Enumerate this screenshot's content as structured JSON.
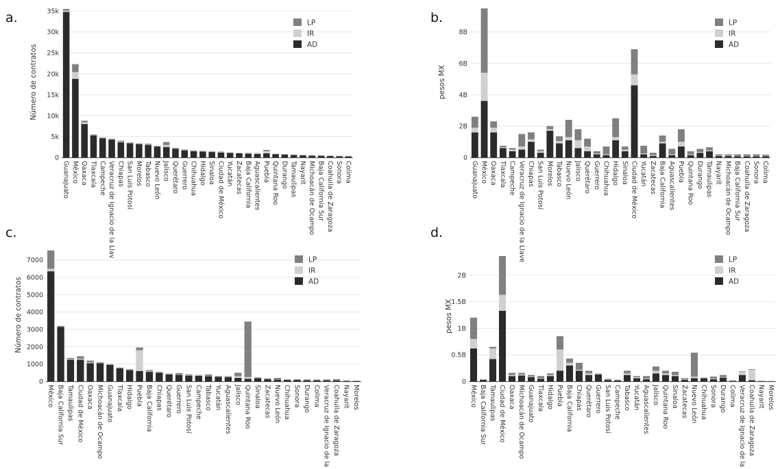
{
  "legend_labels": [
    "LP",
    "IR",
    "AD"
  ],
  "colors": {
    "AD": "#2b2b2b",
    "IR": "#d0d0d0",
    "LP": "#808080",
    "grid": "#e6e6e6",
    "axis": "#555555"
  },
  "chart_data": [
    {
      "type": "bar",
      "stacked": true,
      "panel_label": "a.",
      "ylabel": "Número de contratos",
      "ylim": [
        0,
        36000
      ],
      "yticks": [
        0,
        5000,
        10000,
        15000,
        20000,
        25000,
        30000,
        35000
      ],
      "ytick_labels": [
        "0",
        "5k",
        "10k",
        "15k",
        "20k",
        "25k",
        "30k",
        "35k"
      ],
      "legend_position": "top-right",
      "categories": [
        "Guanajuato",
        "México",
        "Oaxaca",
        "Tlaxcala",
        "Campeche",
        "Veracruz de Ignacio de la Llav",
        "Chiapas",
        "San Luis Potosí",
        "Morelos",
        "Tabasco",
        "Nuevo León",
        "Jalisco",
        "Querétaro",
        "Guerrero",
        "Chihuahua",
        "Hidalgo",
        "Sinaloa",
        "Ciudad de México",
        "Yucatán",
        "Zacatecas",
        "Baja California",
        "Aguascalientes",
        "Puebla",
        "Quintana Roo",
        "Durango",
        "Tamaulipas",
        "Nayarit",
        "Michoacán de Ocampo",
        "Baja California Sur",
        "Coahuila de Zaragoza",
        "Sonora",
        "Colima"
      ],
      "series": [
        {
          "name": "AD",
          "values": [
            34800,
            18800,
            8000,
            5300,
            4600,
            4300,
            3600,
            3400,
            3200,
            3000,
            2600,
            2500,
            2100,
            1700,
            1500,
            1400,
            1300,
            1200,
            1100,
            1000,
            900,
            850,
            1000,
            800,
            700,
            600,
            500,
            450,
            400,
            350,
            300,
            250
          ]
        },
        {
          "name": "IR",
          "values": [
            300,
            1600,
            400,
            100,
            100,
            100,
            150,
            100,
            50,
            100,
            100,
            500,
            100,
            100,
            100,
            100,
            100,
            100,
            50,
            50,
            100,
            100,
            500,
            50,
            50,
            50,
            50,
            50,
            50,
            50,
            50,
            50
          ]
        },
        {
          "name": "LP",
          "values": [
            400,
            1900,
            400,
            100,
            100,
            100,
            250,
            100,
            100,
            200,
            100,
            700,
            100,
            100,
            100,
            100,
            100,
            100,
            50,
            50,
            100,
            100,
            300,
            50,
            50,
            50,
            50,
            50,
            50,
            50,
            50,
            50
          ]
        }
      ]
    },
    {
      "type": "bar",
      "stacked": true,
      "panel_label": "b.",
      "ylabel": "pesos MX",
      "ylim": [
        0,
        9600000000
      ],
      "yticks": [
        0,
        2000000000,
        4000000000,
        6000000000,
        8000000000
      ],
      "ytick_labels": [
        "0",
        "2B",
        "4B",
        "6B",
        "8B"
      ],
      "legend_position": "top-right",
      "categories": [
        "Guanajuato",
        "México",
        "Oaxaca",
        "Tlaxcala",
        "Campeche",
        "Veracruz de Ignacio de la Llave",
        "Chiapas",
        "San Luis Potosí",
        "Morelos",
        "Tabasco",
        "Nuevo León",
        "Jalisco",
        "Querétaro",
        "Guerrero",
        "Chihuahua",
        "Hidalgo",
        "Sinaloa",
        "Ciudad de México",
        "Yucatán",
        "Zacatecas",
        "Baja California",
        "Aguascalientes",
        "Puebla",
        "Quintana Roo",
        "Durango",
        "Tamaulipas",
        "Nayarit",
        "Michoacán de Ocampo",
        "Baja California Sur",
        "Coahuila de Zaragoza",
        "Sonora",
        "Colima"
      ],
      "series": [
        {
          "name": "AD",
          "values": [
            1600000000,
            3600000000,
            1600000000,
            600000000,
            400000000,
            500000000,
            1000000000,
            300000000,
            1700000000,
            900000000,
            1100000000,
            600000000,
            400000000,
            200000000,
            150000000,
            1100000000,
            400000000,
            4600000000,
            200000000,
            100000000,
            900000000,
            150000000,
            700000000,
            150000000,
            300000000,
            400000000,
            100000000,
            100000000,
            80000000,
            80000000,
            80000000,
            80000000
          ]
        },
        {
          "name": "IR",
          "values": [
            300000000,
            1800000000,
            300000000,
            50000000,
            100000000,
            200000000,
            150000000,
            100000000,
            100000000,
            150000000,
            200000000,
            500000000,
            300000000,
            50000000,
            50000000,
            200000000,
            100000000,
            700000000,
            50000000,
            50000000,
            100000000,
            50000000,
            300000000,
            50000000,
            50000000,
            50000000,
            20000000,
            20000000,
            20000000,
            20000000,
            20000000,
            20000000
          ]
        },
        {
          "name": "LP",
          "values": [
            700000000,
            4100000000,
            400000000,
            100000000,
            100000000,
            800000000,
            450000000,
            100000000,
            200000000,
            300000000,
            1100000000,
            700000000,
            500000000,
            150000000,
            500000000,
            1200000000,
            200000000,
            1600000000,
            500000000,
            150000000,
            400000000,
            350000000,
            800000000,
            200000000,
            200000000,
            200000000,
            80000000,
            80000000,
            100000000,
            100000000,
            100000000,
            80000000
          ]
        }
      ]
    },
    {
      "type": "bar",
      "stacked": true,
      "panel_label": "c.",
      "ylabel": "Número de contratos",
      "ylim": [
        0,
        7700
      ],
      "yticks": [
        0,
        1000,
        2000,
        3000,
        4000,
        5000,
        6000,
        7000
      ],
      "ytick_labels": [
        "0",
        "1000",
        "2000",
        "3000",
        "4000",
        "5000",
        "6000",
        "7000"
      ],
      "legend_position": "top-right",
      "categories": [
        "México",
        "Baja California Sur",
        "Tamaulipas",
        "Ciudad de México",
        "Oaxaca",
        "Michoacán de Ocampo",
        "Guanajuato",
        "Tlaxcala",
        "Hidalgo",
        "Puebla",
        "Baja California",
        "Chiapas",
        "Querétaro",
        "Guerrero",
        "San Luis Potosí",
        "Campeche",
        "Tabasco",
        "Yucatán",
        "Aguascalientes",
        "Jalisco",
        "Quintana Roo",
        "Sinaloa",
        "Zacatecas",
        "Nuevo León",
        "Chihuahua",
        "Sonora",
        "Durango",
        "Colima",
        "Veracruz de Ignacio de la Llave",
        "Coahuila de Zaragoza",
        "Nayarit",
        "Morelos"
      ],
      "series": [
        {
          "name": "AD",
          "values": [
            6350,
            3150,
            1250,
            1250,
            1050,
            1050,
            950,
            750,
            650,
            600,
            550,
            500,
            400,
            380,
            330,
            320,
            300,
            260,
            250,
            200,
            150,
            180,
            120,
            100,
            80,
            80,
            70,
            70,
            70,
            60,
            30,
            20
          ]
        },
        {
          "name": "IR",
          "values": [
            150,
            20,
            40,
            50,
            50,
            20,
            20,
            20,
            20,
            1200,
            40,
            20,
            20,
            20,
            20,
            20,
            20,
            20,
            20,
            100,
            100,
            20,
            20,
            20,
            20,
            20,
            20,
            20,
            20,
            20,
            10,
            10
          ]
        },
        {
          "name": "LP",
          "values": [
            1050,
            30,
            60,
            150,
            100,
            30,
            30,
            30,
            30,
            150,
            60,
            30,
            30,
            80,
            50,
            30,
            80,
            30,
            30,
            200,
            3200,
            30,
            40,
            80,
            20,
            30,
            30,
            20,
            30,
            50,
            10,
            10
          ]
        }
      ]
    },
    {
      "type": "bar",
      "stacked": true,
      "panel_label": "d.",
      "ylabel": "pesos MX",
      "ylim": [
        0,
        2450000000
      ],
      "yticks": [
        0,
        500000000,
        1000000000,
        1500000000,
        2000000000
      ],
      "ytick_labels": [
        "0",
        "0.5B",
        "1B",
        "1.5B",
        "2B"
      ],
      "legend_position": "top-right",
      "categories": [
        "México",
        "Baja California Sur",
        "Tamaulipas",
        "Ciudad de México",
        "Oaxaca",
        "Michoacán de Ocampo",
        "Guanajuato",
        "Tlaxcala",
        "Hidalgo",
        "Puebla",
        "Baja California",
        "Chiapas",
        "Querétaro",
        "Guerrero",
        "San Luis Potosí",
        "Campeche",
        "Tabasco",
        "Yucatán",
        "Aguascalientes",
        "Jalisco",
        "Quintana Roo",
        "Sinaloa",
        "Zacatecas",
        "Nuevo León",
        "Chihuahua",
        "Sonora",
        "Durango",
        "Colima",
        "Veracruz de Ignacio de la Llave",
        "Coahuila de Zaragoza",
        "Nayarit",
        "Morelos"
      ],
      "series": [
        {
          "name": "AD",
          "values": [
            620000000,
            30000000,
            420000000,
            1330000000,
            100000000,
            110000000,
            80000000,
            50000000,
            100000000,
            200000000,
            300000000,
            200000000,
            120000000,
            130000000,
            30000000,
            20000000,
            120000000,
            60000000,
            40000000,
            150000000,
            120000000,
            100000000,
            30000000,
            60000000,
            60000000,
            40000000,
            70000000,
            10000000,
            120000000,
            20000000,
            5000000,
            3000000
          ]
        },
        {
          "name": "IR",
          "values": [
            180000000,
            5000000,
            200000000,
            300000000,
            20000000,
            20000000,
            10000000,
            10000000,
            20000000,
            400000000,
            50000000,
            20000000,
            30000000,
            10000000,
            10000000,
            5000000,
            30000000,
            20000000,
            10000000,
            50000000,
            30000000,
            20000000,
            10000000,
            30000000,
            5000000,
            10000000,
            10000000,
            5000000,
            60000000,
            200000000,
            3000000,
            2000000
          ]
        },
        {
          "name": "LP",
          "values": [
            400000000,
            5000000,
            30000000,
            730000000,
            40000000,
            30000000,
            30000000,
            40000000,
            30000000,
            250000000,
            80000000,
            130000000,
            50000000,
            10000000,
            10000000,
            5000000,
            50000000,
            20000000,
            50000000,
            80000000,
            50000000,
            60000000,
            20000000,
            450000000,
            5000000,
            40000000,
            40000000,
            5000000,
            10000000,
            10000000,
            3000000,
            3000000
          ]
        }
      ]
    }
  ]
}
